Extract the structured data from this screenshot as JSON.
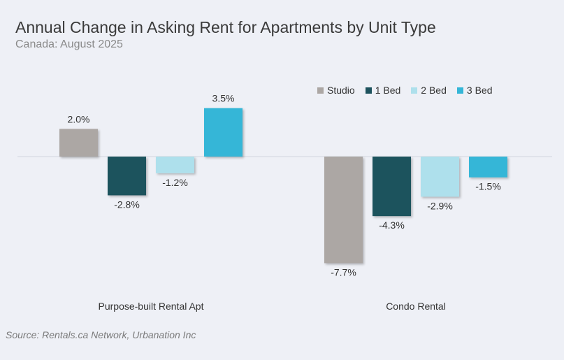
{
  "title": "Annual Change in Asking Rent for Apartments by Unit Type",
  "subtitle": "Canada: August 2025",
  "source": "Source: Rentals.ca Network, Urbanation Inc",
  "chart_data": {
    "type": "bar",
    "title": "Annual Change in Asking Rent for Apartments by Unit Type",
    "subtitle": "Canada: August 2025",
    "categories": [
      "Purpose-built Rental Apt",
      "Condo Rental"
    ],
    "series": [
      {
        "name": "Studio",
        "values": [
          2.0,
          -7.7
        ],
        "labels": [
          "2.0%",
          "-7.7%"
        ],
        "color": "#aca7a4"
      },
      {
        "name": "1 Bed",
        "values": [
          -2.8,
          -4.3
        ],
        "labels": [
          "-2.8%",
          "-4.3%"
        ],
        "color": "#1d525d"
      },
      {
        "name": "2 Bed",
        "values": [
          -1.2,
          -2.9
        ],
        "labels": [
          "-1.2%",
          "-2.9%"
        ],
        "color": "#aee0ec"
      },
      {
        "name": "3 Bed",
        "values": [
          3.5,
          -1.5
        ],
        "labels": [
          "3.5%",
          "-1.5%"
        ],
        "color": "#34b6d7"
      }
    ],
    "unit": "%",
    "grid": false,
    "legend_position": "top-right"
  }
}
